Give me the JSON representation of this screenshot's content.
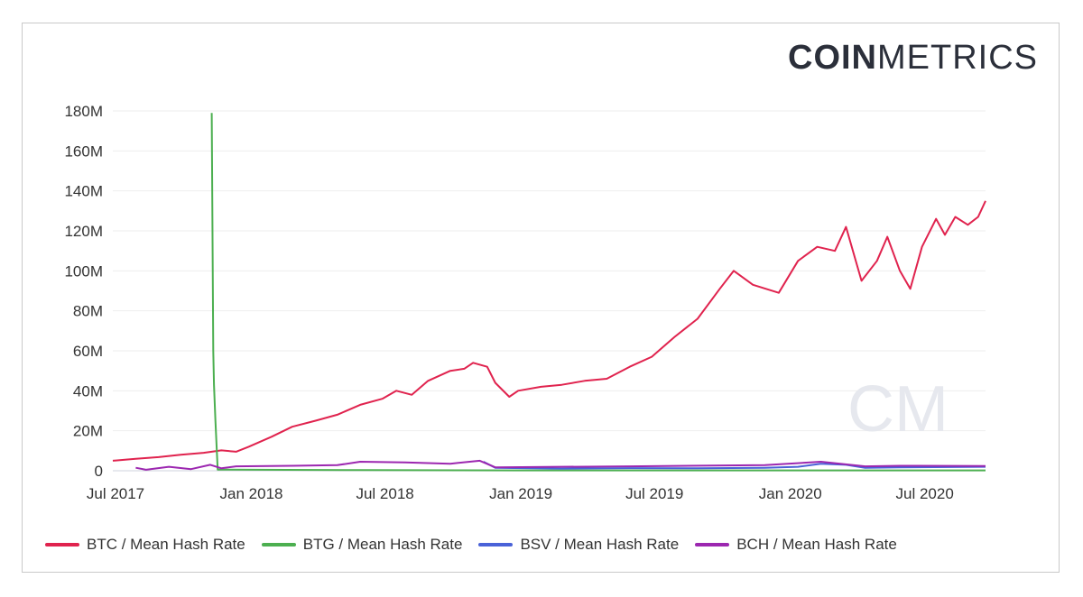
{
  "logo": {
    "bold": "COIN",
    "light": "METRICS"
  },
  "watermark": "CM",
  "chart_data": {
    "type": "line",
    "title": "",
    "xlabel": "",
    "ylabel": "",
    "ylim": [
      0,
      180000000
    ],
    "yticks": [
      {
        "value": 0,
        "label": "0"
      },
      {
        "value": 20000000,
        "label": "20M"
      },
      {
        "value": 40000000,
        "label": "40M"
      },
      {
        "value": 60000000,
        "label": "60M"
      },
      {
        "value": 80000000,
        "label": "80M"
      },
      {
        "value": 100000000,
        "label": "100M"
      },
      {
        "value": 120000000,
        "label": "120M"
      },
      {
        "value": 140000000,
        "label": "140M"
      },
      {
        "value": 160000000,
        "label": "160M"
      },
      {
        "value": 180000000,
        "label": "180M"
      }
    ],
    "xlim": [
      "2017-07-01",
      "2020-09-25"
    ],
    "xticks": [
      {
        "date": "2017-07-01",
        "label": "Jul 2017"
      },
      {
        "date": "2018-01-01",
        "label": "Jan 2018"
      },
      {
        "date": "2018-07-01",
        "label": "Jul 2018"
      },
      {
        "date": "2019-01-01",
        "label": "Jan 2019"
      },
      {
        "date": "2019-07-01",
        "label": "Jul 2019"
      },
      {
        "date": "2020-01-01",
        "label": "Jan 2020"
      },
      {
        "date": "2020-07-01",
        "label": "Jul 2020"
      }
    ],
    "grid": true,
    "legend_position": "bottom-left",
    "series": [
      {
        "name": "BTC / Mean Hash Rate",
        "color": "#e0234e",
        "points": [
          [
            "2017-07-01",
            5000000
          ],
          [
            "2017-08-01",
            6000000
          ],
          [
            "2017-09-01",
            6800000
          ],
          [
            "2017-10-01",
            8000000
          ],
          [
            "2017-11-01",
            9000000
          ],
          [
            "2017-11-25",
            10200000
          ],
          [
            "2017-12-15",
            9500000
          ],
          [
            "2018-01-01",
            12000000
          ],
          [
            "2018-02-01",
            17000000
          ],
          [
            "2018-03-01",
            22000000
          ],
          [
            "2018-04-01",
            25000000
          ],
          [
            "2018-05-01",
            28000000
          ],
          [
            "2018-06-01",
            33000000
          ],
          [
            "2018-07-01",
            36000000
          ],
          [
            "2018-07-20",
            40000000
          ],
          [
            "2018-08-10",
            38000000
          ],
          [
            "2018-09-01",
            45000000
          ],
          [
            "2018-10-01",
            50000000
          ],
          [
            "2018-10-20",
            51000000
          ],
          [
            "2018-11-01",
            54000000
          ],
          [
            "2018-11-20",
            52000000
          ],
          [
            "2018-12-01",
            44000000
          ],
          [
            "2018-12-20",
            37000000
          ],
          [
            "2019-01-01",
            40000000
          ],
          [
            "2019-02-01",
            42000000
          ],
          [
            "2019-03-01",
            43000000
          ],
          [
            "2019-04-01",
            45000000
          ],
          [
            "2019-05-01",
            46000000
          ],
          [
            "2019-06-01",
            52000000
          ],
          [
            "2019-07-01",
            57000000
          ],
          [
            "2019-08-01",
            67000000
          ],
          [
            "2019-09-01",
            76000000
          ],
          [
            "2019-10-01",
            91000000
          ],
          [
            "2019-10-20",
            100000000
          ],
          [
            "2019-11-15",
            93000000
          ],
          [
            "2019-12-20",
            89000000
          ],
          [
            "2020-01-15",
            105000000
          ],
          [
            "2020-02-10",
            112000000
          ],
          [
            "2020-03-05",
            110000000
          ],
          [
            "2020-03-20",
            122000000
          ],
          [
            "2020-04-10",
            95000000
          ],
          [
            "2020-05-01",
            105000000
          ],
          [
            "2020-05-15",
            117000000
          ],
          [
            "2020-06-01",
            100000000
          ],
          [
            "2020-06-15",
            91000000
          ],
          [
            "2020-07-01",
            112000000
          ],
          [
            "2020-07-20",
            126000000
          ],
          [
            "2020-08-01",
            118000000
          ],
          [
            "2020-08-15",
            127000000
          ],
          [
            "2020-09-01",
            123000000
          ],
          [
            "2020-09-15",
            127000000
          ],
          [
            "2020-09-25",
            135000000
          ]
        ]
      },
      {
        "name": "BTG / Mean Hash Rate",
        "color": "#4caf50",
        "points": [
          [
            "2017-11-12",
            179000000
          ],
          [
            "2017-11-14",
            60000000
          ],
          [
            "2017-11-15",
            43000000
          ],
          [
            "2017-11-17",
            25000000
          ],
          [
            "2017-11-20",
            600000
          ],
          [
            "2018-06-01",
            300000
          ],
          [
            "2019-01-01",
            200000
          ],
          [
            "2020-01-01",
            200000
          ],
          [
            "2020-09-25",
            200000
          ]
        ]
      },
      {
        "name": "BSV / Mean Hash Rate",
        "color": "#4a62d8",
        "points": [
          [
            "2018-11-15",
            4500000
          ],
          [
            "2018-12-01",
            1500000
          ],
          [
            "2019-03-01",
            1100000
          ],
          [
            "2019-06-01",
            1300000
          ],
          [
            "2019-09-01",
            1200000
          ],
          [
            "2019-12-01",
            1500000
          ],
          [
            "2020-01-15",
            2000000
          ],
          [
            "2020-02-15",
            3500000
          ],
          [
            "2020-03-20",
            3000000
          ],
          [
            "2020-04-15",
            1500000
          ],
          [
            "2020-06-01",
            1700000
          ],
          [
            "2020-09-25",
            2000000
          ]
        ]
      },
      {
        "name": "BCH / Mean Hash Rate",
        "color": "#9c27b0",
        "points": [
          [
            "2017-08-01",
            1500000
          ],
          [
            "2017-08-15",
            500000
          ],
          [
            "2017-09-15",
            2000000
          ],
          [
            "2017-10-15",
            800000
          ],
          [
            "2017-11-10",
            3000000
          ],
          [
            "2017-11-25",
            1200000
          ],
          [
            "2017-12-15",
            2200000
          ],
          [
            "2018-03-01",
            2500000
          ],
          [
            "2018-05-01",
            2800000
          ],
          [
            "2018-06-01",
            4500000
          ],
          [
            "2018-08-01",
            4200000
          ],
          [
            "2018-10-01",
            3500000
          ],
          [
            "2018-11-10",
            5000000
          ],
          [
            "2018-12-01",
            1700000
          ],
          [
            "2019-06-01",
            2200000
          ],
          [
            "2019-12-01",
            2800000
          ],
          [
            "2020-02-15",
            4500000
          ],
          [
            "2020-04-15",
            2200000
          ],
          [
            "2020-06-01",
            2500000
          ],
          [
            "2020-09-25",
            2400000
          ]
        ]
      }
    ]
  }
}
